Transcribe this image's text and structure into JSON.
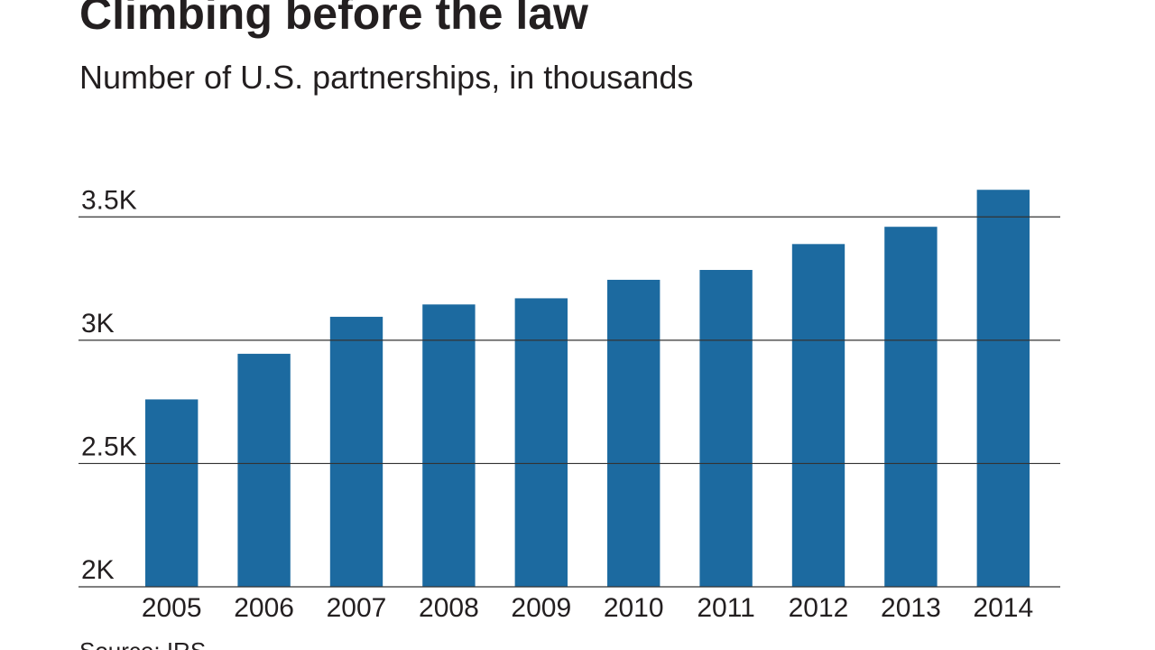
{
  "chart_data": {
    "type": "bar",
    "title": "Climbing before the law",
    "subtitle": "Number of U.S. partnerships, in thousands",
    "source": "Source: IRS",
    "categories": [
      "2005",
      "2006",
      "2007",
      "2008",
      "2009",
      "2010",
      "2011",
      "2012",
      "2013",
      "2014"
    ],
    "values": [
      2760,
      2945,
      3095,
      3145,
      3170,
      3245,
      3285,
      3390,
      3460,
      3610
    ],
    "color": "#1c6aa0",
    "ylim": [
      2000,
      3750
    ],
    "yticks": [
      {
        "value": 2000,
        "label": "2K"
      },
      {
        "value": 2500,
        "label": "2.5K"
      },
      {
        "value": 3000,
        "label": "3K"
      },
      {
        "value": 3500,
        "label": "3.5K"
      }
    ],
    "grid": true
  }
}
